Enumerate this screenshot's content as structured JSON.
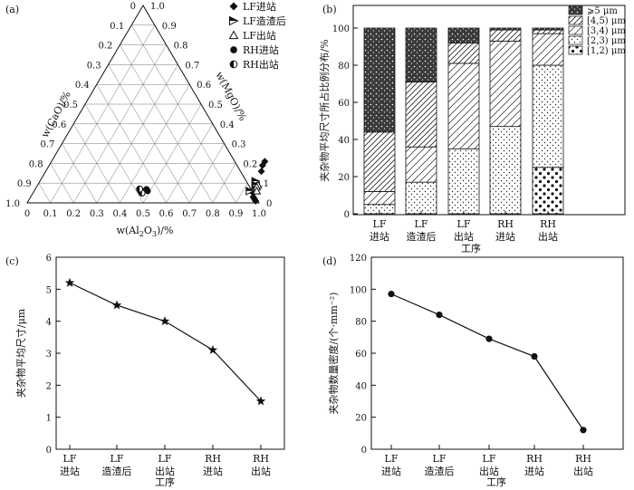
{
  "chart_data": [
    {
      "panel": "(a)",
      "type": "scatter",
      "subtype": "ternary",
      "axes": {
        "left": "w(CaO)/%",
        "right": "w(MgO)/%",
        "bottom": "w(Al2O3)/%"
      },
      "bottom_label_parts": {
        "pre": "w(Al",
        "sub1": "2",
        "mid": "O",
        "sub2": "3",
        "post": ")/%"
      },
      "tick_labels": [
        "0",
        "0.1",
        "0.2",
        "0.3",
        "0.4",
        "0.5",
        "0.6",
        "0.7",
        "0.8",
        "0.9",
        "1.0"
      ],
      "legend": [
        {
          "name": "LF进站",
          "marker": "diamond-filled"
        },
        {
          "name": "LF造渣后",
          "marker": "triangle-right-half"
        },
        {
          "name": "LF出站",
          "marker": "triangle-open"
        },
        {
          "name": "RH进站",
          "marker": "circle-filled"
        },
        {
          "name": "RH出站",
          "marker": "circle-half"
        }
      ],
      "series": [
        {
          "name": "LF进站",
          "points": [
            {
              "al": 0.92,
              "mg": 0.21
            },
            {
              "al": 0.92,
              "mg": 0.19
            },
            {
              "al": 0.93,
              "mg": 0.16
            },
            {
              "al": 0.95,
              "mg": 0.05
            },
            {
              "al": 0.96,
              "mg": 0.03
            },
            {
              "al": 0.97,
              "mg": 0.02
            },
            {
              "al": 0.98,
              "mg": 0.01
            }
          ]
        },
        {
          "name": "LF造渣后",
          "points": [
            {
              "al": 0.93,
              "mg": 0.11
            },
            {
              "al": 0.94,
              "mg": 0.09
            },
            {
              "al": 0.95,
              "mg": 0.07
            },
            {
              "al": 0.93,
              "mg": 0.06
            }
          ]
        },
        {
          "name": "LF出站",
          "points": [
            {
              "al": 0.95,
              "mg": 0.09
            },
            {
              "al": 0.95,
              "mg": 0.08
            },
            {
              "al": 0.96,
              "mg": 0.06
            }
          ]
        },
        {
          "name": "RH进站",
          "points": [
            {
              "al": 0.48,
              "mg": 0.07
            },
            {
              "al": 0.49,
              "mg": 0.06
            },
            {
              "al": 0.47,
              "mg": 0.06
            }
          ]
        },
        {
          "name": "RH出站",
          "points": [
            {
              "al": 0.46,
              "mg": 0.06
            },
            {
              "al": 0.47,
              "mg": 0.05
            },
            {
              "al": 0.45,
              "mg": 0.07
            }
          ]
        }
      ]
    },
    {
      "panel": "(b)",
      "type": "bar",
      "stacked": true,
      "categories": [
        [
          "LF",
          "进站"
        ],
        [
          "LF",
          "造渣后"
        ],
        [
          "LF",
          "出站"
        ],
        [
          "RH",
          "进站"
        ],
        [
          "RH",
          "出站"
        ]
      ],
      "xlabel": "工序",
      "ylabel": "夹杂物平均尺寸所占比例分布/%",
      "ylim": [
        0,
        100
      ],
      "yticks": [
        0,
        20,
        40,
        60,
        80,
        100
      ],
      "legend": [
        "⩾5 μm",
        "[4,5) μm",
        "[3,4) μm",
        "[2,3) μm",
        "[1,2) μm"
      ],
      "series": [
        {
          "name": "[1,2) μm",
          "values": [
            0,
            0,
            0,
            0,
            25
          ]
        },
        {
          "name": "[2,3) μm",
          "values": [
            5,
            17,
            35,
            47,
            55
          ]
        },
        {
          "name": "[3,4) μm",
          "values": [
            7,
            19,
            46,
            46,
            17
          ]
        },
        {
          "name": "[4,5) μm",
          "values": [
            32,
            35,
            11,
            6,
            2
          ]
        },
        {
          "name": "⩾5 μm",
          "values": [
            56,
            29,
            8,
            1,
            1
          ]
        }
      ]
    },
    {
      "panel": "(c)",
      "type": "line",
      "categories": [
        [
          "LF",
          "进站"
        ],
        [
          "LF",
          "造渣后"
        ],
        [
          "LF",
          "出站"
        ],
        [
          "RH",
          "进站"
        ],
        [
          "RH",
          "出站"
        ]
      ],
      "values": [
        5.2,
        4.5,
        4.0,
        3.1,
        1.5
      ],
      "marker": "star",
      "xlabel": "工序",
      "ylabel": "夹杂物平均尺寸/μm",
      "ylim": [
        0,
        6
      ],
      "yticks": [
        0,
        1,
        2,
        3,
        4,
        5,
        6
      ]
    },
    {
      "panel": "(d)",
      "type": "line",
      "categories": [
        [
          "LF",
          "进站"
        ],
        [
          "LF",
          "造渣后"
        ],
        [
          "LF",
          "出站"
        ],
        [
          "RH",
          "进站"
        ],
        [
          "RH",
          "出站"
        ]
      ],
      "values": [
        97,
        84,
        69,
        58,
        12
      ],
      "marker": "circle",
      "xlabel": "工序",
      "ylabel": "夹杂物数量密度/(个·mm⁻²)",
      "ylim": [
        0,
        120
      ],
      "yticks": [
        0,
        20,
        40,
        60,
        80,
        100,
        120
      ]
    }
  ]
}
